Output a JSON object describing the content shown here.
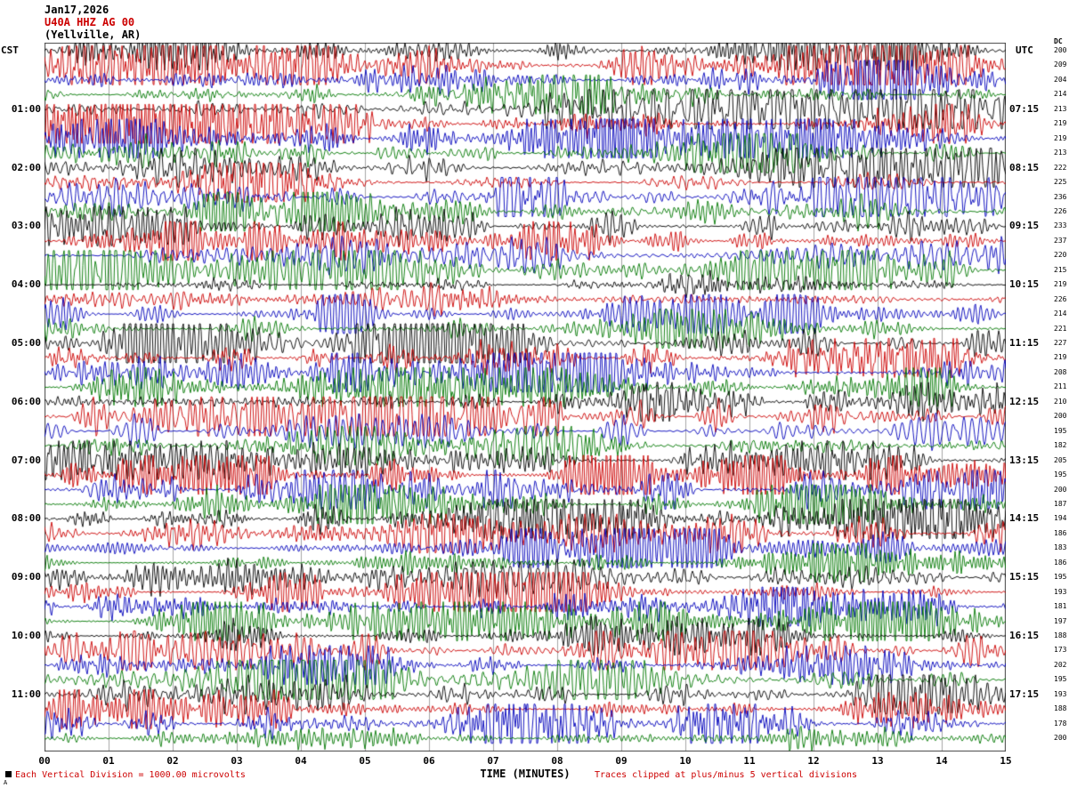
{
  "header": {
    "date": "Jan17,2026",
    "station": "U40A HHZ AG 00",
    "location": "(Yellville, AR)"
  },
  "axes": {
    "left_timezone": "CST",
    "right_timezone": "UTC",
    "dc_label": "DC",
    "x_title": "TIME (MINUTES)",
    "x_ticks": [
      "00",
      "01",
      "02",
      "03",
      "04",
      "05",
      "06",
      "07",
      "08",
      "09",
      "10",
      "11",
      "12",
      "13",
      "14",
      "15"
    ]
  },
  "footer": {
    "left_note": "Each Vertical Division = 1000.00 microvolts",
    "right_note": "Traces clipped at plus/minus 5 vertical divisions",
    "corner_mark": "A"
  },
  "colors": {
    "black": "#000000",
    "red": "#cc0000",
    "blue": "#0000bb",
    "green": "#007700",
    "grid": "#808080",
    "border": "#444444"
  },
  "chart_data": {
    "type": "line",
    "subtype": "seismogram-helicorder",
    "title": "U40A HHZ AG 00 (Yellville, AR) Jan17,2026",
    "x_range_minutes": [
      0,
      15
    ],
    "minutes_per_row": 15,
    "grid": true,
    "clip_divisions": 5,
    "microvolts_per_division": 1000.0,
    "trace_colors_cycle": [
      "black",
      "red",
      "blue",
      "green"
    ],
    "rows": [
      {
        "cst": "",
        "utc": "",
        "dc": 200,
        "color": "black"
      },
      {
        "cst": "",
        "utc": "",
        "dc": 209,
        "color": "red"
      },
      {
        "cst": "",
        "utc": "",
        "dc": 204,
        "color": "blue"
      },
      {
        "cst": "",
        "utc": "",
        "dc": 214,
        "color": "green"
      },
      {
        "cst": "01:00",
        "utc": "07:15",
        "dc": 213,
        "color": "black"
      },
      {
        "cst": "",
        "utc": "",
        "dc": 219,
        "color": "red"
      },
      {
        "cst": "",
        "utc": "",
        "dc": 219,
        "color": "blue"
      },
      {
        "cst": "",
        "utc": "",
        "dc": 213,
        "color": "green"
      },
      {
        "cst": "02:00",
        "utc": "08:15",
        "dc": 222,
        "color": "black"
      },
      {
        "cst": "",
        "utc": "",
        "dc": 225,
        "color": "red"
      },
      {
        "cst": "",
        "utc": "",
        "dc": 236,
        "color": "blue"
      },
      {
        "cst": "",
        "utc": "",
        "dc": 226,
        "color": "green"
      },
      {
        "cst": "03:00",
        "utc": "09:15",
        "dc": 233,
        "color": "black"
      },
      {
        "cst": "",
        "utc": "",
        "dc": 237,
        "color": "red"
      },
      {
        "cst": "",
        "utc": "",
        "dc": 220,
        "color": "blue"
      },
      {
        "cst": "",
        "utc": "",
        "dc": 215,
        "color": "green"
      },
      {
        "cst": "04:00",
        "utc": "10:15",
        "dc": 219,
        "color": "black"
      },
      {
        "cst": "",
        "utc": "",
        "dc": 226,
        "color": "red"
      },
      {
        "cst": "",
        "utc": "",
        "dc": 214,
        "color": "blue"
      },
      {
        "cst": "",
        "utc": "",
        "dc": 221,
        "color": "green"
      },
      {
        "cst": "05:00",
        "utc": "11:15",
        "dc": 227,
        "color": "black"
      },
      {
        "cst": "",
        "utc": "",
        "dc": 219,
        "color": "red"
      },
      {
        "cst": "",
        "utc": "",
        "dc": 208,
        "color": "blue"
      },
      {
        "cst": "",
        "utc": "",
        "dc": 211,
        "color": "green"
      },
      {
        "cst": "06:00",
        "utc": "12:15",
        "dc": 210,
        "color": "black"
      },
      {
        "cst": "",
        "utc": "",
        "dc": 200,
        "color": "red"
      },
      {
        "cst": "",
        "utc": "",
        "dc": 195,
        "color": "blue"
      },
      {
        "cst": "",
        "utc": "",
        "dc": 182,
        "color": "green"
      },
      {
        "cst": "07:00",
        "utc": "13:15",
        "dc": 205,
        "color": "black"
      },
      {
        "cst": "",
        "utc": "",
        "dc": 195,
        "color": "red"
      },
      {
        "cst": "",
        "utc": "",
        "dc": 200,
        "color": "blue"
      },
      {
        "cst": "",
        "utc": "",
        "dc": 187,
        "color": "green"
      },
      {
        "cst": "08:00",
        "utc": "14:15",
        "dc": 194,
        "color": "black"
      },
      {
        "cst": "",
        "utc": "",
        "dc": 186,
        "color": "red"
      },
      {
        "cst": "",
        "utc": "",
        "dc": 183,
        "color": "blue"
      },
      {
        "cst": "",
        "utc": "",
        "dc": 186,
        "color": "green"
      },
      {
        "cst": "09:00",
        "utc": "15:15",
        "dc": 195,
        "color": "black"
      },
      {
        "cst": "",
        "utc": "",
        "dc": 193,
        "color": "red"
      },
      {
        "cst": "",
        "utc": "",
        "dc": 181,
        "color": "blue"
      },
      {
        "cst": "",
        "utc": "",
        "dc": 197,
        "color": "green"
      },
      {
        "cst": "10:00",
        "utc": "16:15",
        "dc": 188,
        "color": "black"
      },
      {
        "cst": "",
        "utc": "",
        "dc": 173,
        "color": "red"
      },
      {
        "cst": "",
        "utc": "",
        "dc": 202,
        "color": "blue"
      },
      {
        "cst": "",
        "utc": "",
        "dc": 195,
        "color": "green"
      },
      {
        "cst": "11:00",
        "utc": "17:15",
        "dc": 193,
        "color": "black"
      },
      {
        "cst": "",
        "utc": "",
        "dc": 188,
        "color": "red"
      },
      {
        "cst": "",
        "utc": "",
        "dc": 178,
        "color": "blue"
      },
      {
        "cst": "",
        "utc": "",
        "dc": 200,
        "color": "green"
      }
    ]
  }
}
